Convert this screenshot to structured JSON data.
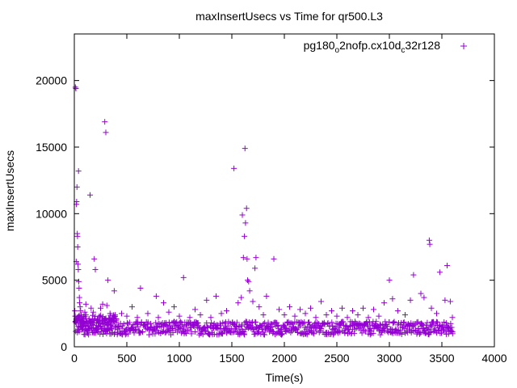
{
  "chart_data": {
    "type": "scatter",
    "title": "maxInsertUsecs vs Time for qr500.L3",
    "xlabel": "Time(s)",
    "ylabel": "maxInsertUsecs",
    "xlim": [
      0,
      4000
    ],
    "ylim": [
      0,
      23500
    ],
    "x_ticks": [
      0,
      500,
      1000,
      1500,
      2000,
      2500,
      3000,
      3500,
      4000
    ],
    "y_ticks": [
      0,
      5000,
      10000,
      15000,
      20000
    ],
    "grid": false,
    "legend_position": "top-right",
    "marker": "plus",
    "series_color": "#9400d3",
    "series": [
      {
        "name_parts": [
          {
            "text": "pg180",
            "sub": false
          },
          {
            "text": "o",
            "sub": true
          },
          {
            "text": "2nofp.cx10d",
            "sub": false
          },
          {
            "text": "c",
            "sub": true
          },
          {
            "text": "32r128",
            "sub": false
          }
        ],
        "points": [
          [
            5,
            2700
          ],
          [
            8,
            2300
          ],
          [
            10,
            19500
          ],
          [
            15,
            19400
          ],
          [
            18,
            6400
          ],
          [
            20,
            10700
          ],
          [
            22,
            10900
          ],
          [
            25,
            12000
          ],
          [
            28,
            8500
          ],
          [
            30,
            8300
          ],
          [
            32,
            7500
          ],
          [
            35,
            6200
          ],
          [
            38,
            5800
          ],
          [
            40,
            13200
          ],
          [
            42,
            4900
          ],
          [
            45,
            4400
          ],
          [
            48,
            3700
          ],
          [
            50,
            3300
          ],
          [
            55,
            3000
          ],
          [
            60,
            2700
          ],
          [
            65,
            2400
          ],
          [
            70,
            2200
          ],
          [
            75,
            2000
          ],
          [
            80,
            1900
          ],
          [
            90,
            2300
          ],
          [
            100,
            2600
          ],
          [
            110,
            3200
          ],
          [
            120,
            1800
          ],
          [
            140,
            2100
          ],
          [
            150,
            11400
          ],
          [
            160,
            2900
          ],
          [
            180,
            2600
          ],
          [
            190,
            6600
          ],
          [
            200,
            5800
          ],
          [
            220,
            2100
          ],
          [
            250,
            2900
          ],
          [
            270,
            3200
          ],
          [
            290,
            16900
          ],
          [
            300,
            16100
          ],
          [
            310,
            3100
          ],
          [
            320,
            5000
          ],
          [
            340,
            2500
          ],
          [
            360,
            2000
          ],
          [
            380,
            4200
          ],
          [
            400,
            2100
          ],
          [
            450,
            2500
          ],
          [
            500,
            2300
          ],
          [
            550,
            3000
          ],
          [
            600,
            2200
          ],
          [
            630,
            4400
          ],
          [
            700,
            2500
          ],
          [
            780,
            3800
          ],
          [
            800,
            2200
          ],
          [
            850,
            3300
          ],
          [
            900,
            2600
          ],
          [
            950,
            3000
          ],
          [
            1000,
            2300
          ],
          [
            1040,
            5200
          ],
          [
            1100,
            2200
          ],
          [
            1150,
            2800
          ],
          [
            1200,
            2400
          ],
          [
            1260,
            3500
          ],
          [
            1300,
            2200
          ],
          [
            1350,
            3800
          ],
          [
            1400,
            2500
          ],
          [
            1450,
            2700
          ],
          [
            1520,
            13400
          ],
          [
            1560,
            3300
          ],
          [
            1590,
            3700
          ],
          [
            1600,
            9900
          ],
          [
            1610,
            6700
          ],
          [
            1620,
            8300
          ],
          [
            1625,
            14900
          ],
          [
            1630,
            9300
          ],
          [
            1640,
            10400
          ],
          [
            1645,
            6600
          ],
          [
            1650,
            5000
          ],
          [
            1660,
            4900
          ],
          [
            1670,
            4200
          ],
          [
            1700,
            3400
          ],
          [
            1720,
            5900
          ],
          [
            1730,
            6700
          ],
          [
            1760,
            3000
          ],
          [
            1800,
            2400
          ],
          [
            1830,
            3800
          ],
          [
            1900,
            6600
          ],
          [
            1950,
            2800
          ],
          [
            2000,
            2400
          ],
          [
            2050,
            3000
          ],
          [
            2100,
            2300
          ],
          [
            2150,
            2800
          ],
          [
            2200,
            2500
          ],
          [
            2250,
            2900
          ],
          [
            2300,
            2200
          ],
          [
            2350,
            3400
          ],
          [
            2400,
            2400
          ],
          [
            2450,
            2700
          ],
          [
            2500,
            2300
          ],
          [
            2550,
            2900
          ],
          [
            2600,
            2200
          ],
          [
            2650,
            2700
          ],
          [
            2700,
            2400
          ],
          [
            2750,
            2900
          ],
          [
            2800,
            2200
          ],
          [
            2850,
            2800
          ],
          [
            2900,
            2300
          ],
          [
            2950,
            3300
          ],
          [
            3000,
            5000
          ],
          [
            3030,
            3600
          ],
          [
            3080,
            2700
          ],
          [
            3150,
            2400
          ],
          [
            3200,
            3500
          ],
          [
            3230,
            5400
          ],
          [
            3300,
            4000
          ],
          [
            3330,
            3700
          ],
          [
            3380,
            8000
          ],
          [
            3385,
            7700
          ],
          [
            3400,
            2900
          ],
          [
            3450,
            2500
          ],
          [
            3480,
            5600
          ],
          [
            3530,
            3500
          ],
          [
            3550,
            6100
          ],
          [
            3580,
            3400
          ],
          [
            3600,
            2200
          ]
        ]
      }
    ],
    "dense_band": {
      "x_range": [
        0,
        3600
      ],
      "y_range": [
        900,
        1900
      ]
    }
  }
}
